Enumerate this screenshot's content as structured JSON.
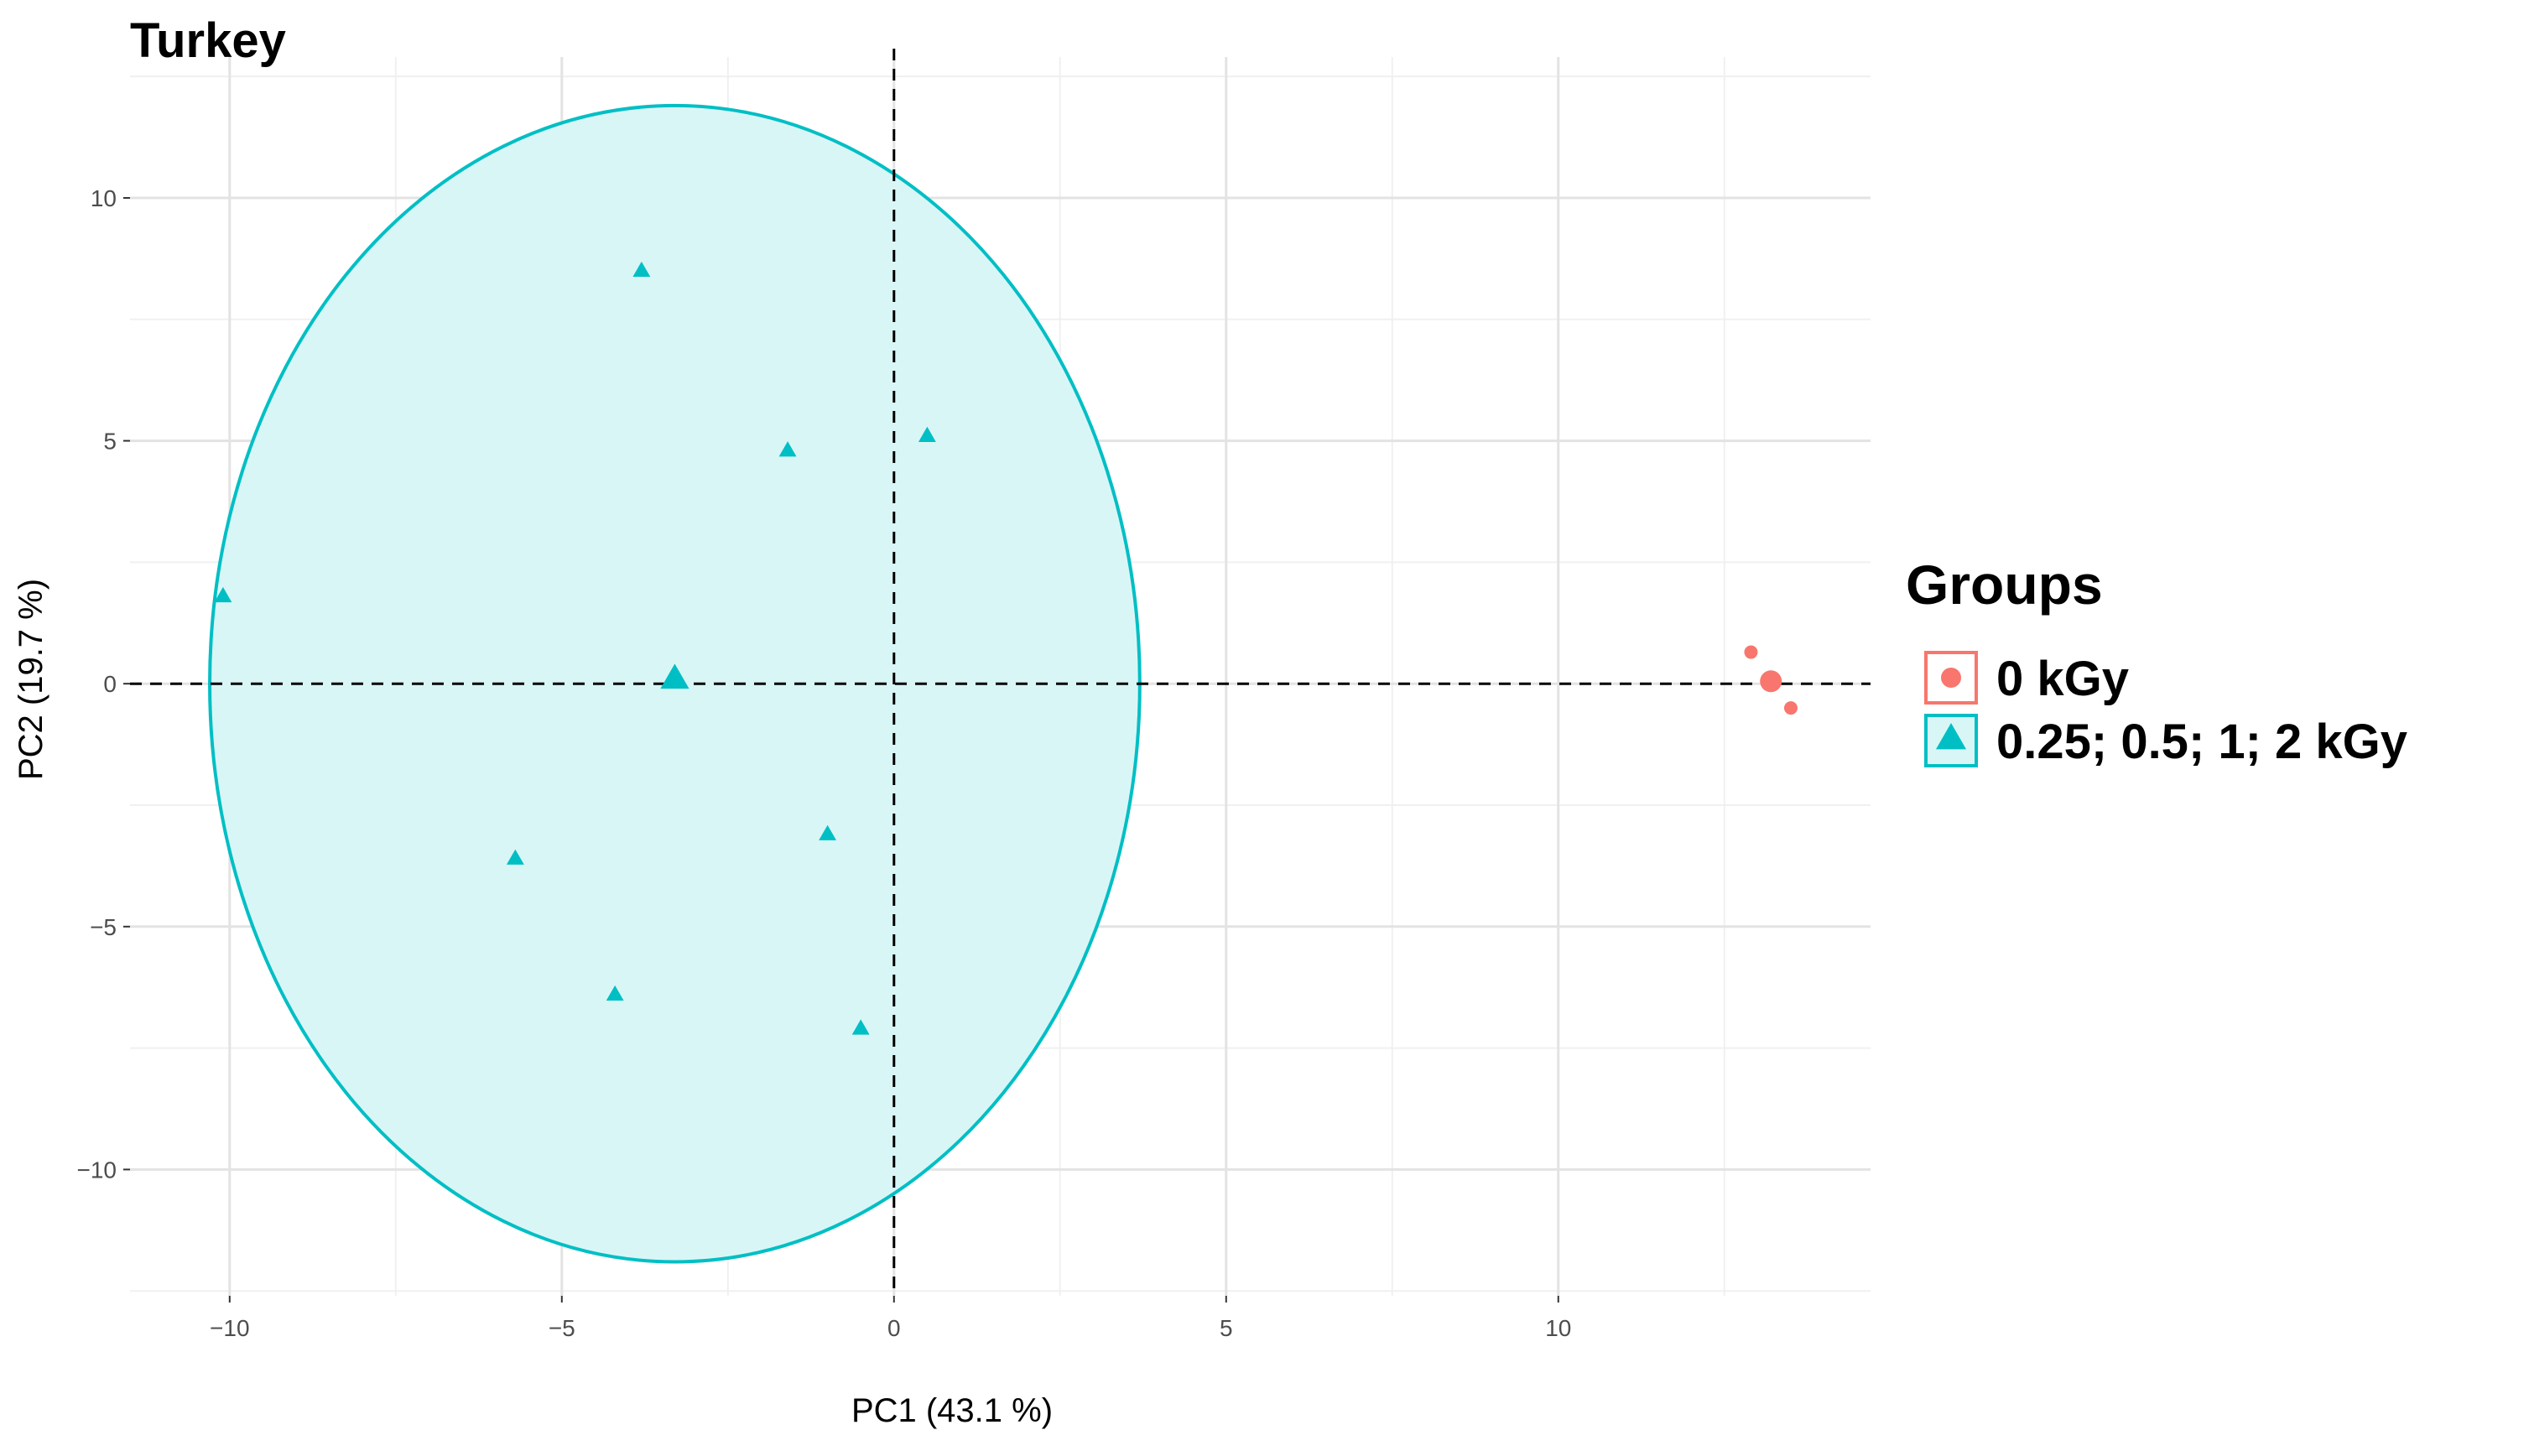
{
  "chart_data": {
    "type": "scatter",
    "title": "Turkey",
    "xlabel": "PC1 (43.1 %)",
    "ylabel": "PC2 (19.7 %)",
    "xlim": [
      -11.5,
      14.7
    ],
    "ylim": [
      -12.6,
      12.9
    ],
    "xticks": [
      -10,
      -5,
      0,
      5,
      10
    ],
    "xtick_labels": [
      "−10",
      "−5",
      "0",
      "5",
      "10"
    ],
    "yticks": [
      -10,
      -5,
      0,
      5,
      10
    ],
    "ytick_labels": [
      "−10",
      "−5",
      "0",
      "5",
      "10"
    ],
    "grid": true,
    "reference_lines": {
      "x": 0,
      "y": 0,
      "style": "dashed"
    },
    "legend": {
      "title": "Groups",
      "placement": "right"
    },
    "series": [
      {
        "name": "0 kGy",
        "marker": "circle",
        "color": "#f8766d",
        "points": [
          {
            "x": 12.9,
            "y": 0.65
          },
          {
            "x": 13.5,
            "y": -0.5
          }
        ],
        "centroid": {
          "x": 13.2,
          "y": 0.05
        }
      },
      {
        "name": "0.25; 0.5; 1; 2 kGy",
        "marker": "triangle",
        "color": "#00bfc4",
        "fill": "#d9f6f7",
        "points": [
          {
            "x": -3.8,
            "y": 8.5
          },
          {
            "x": -1.6,
            "y": 4.8
          },
          {
            "x": 0.5,
            "y": 5.1
          },
          {
            "x": -10.1,
            "y": 1.8
          },
          {
            "x": -5.7,
            "y": -3.6
          },
          {
            "x": -1.0,
            "y": -3.1
          },
          {
            "x": -4.2,
            "y": -6.4
          },
          {
            "x": -0.5,
            "y": -7.1
          }
        ],
        "centroid": {
          "x": -3.3,
          "y": 0.1
        },
        "ellipse": {
          "cx": -3.3,
          "cy": 0.0,
          "rx": 7.0,
          "ry": 11.9
        }
      }
    ]
  }
}
